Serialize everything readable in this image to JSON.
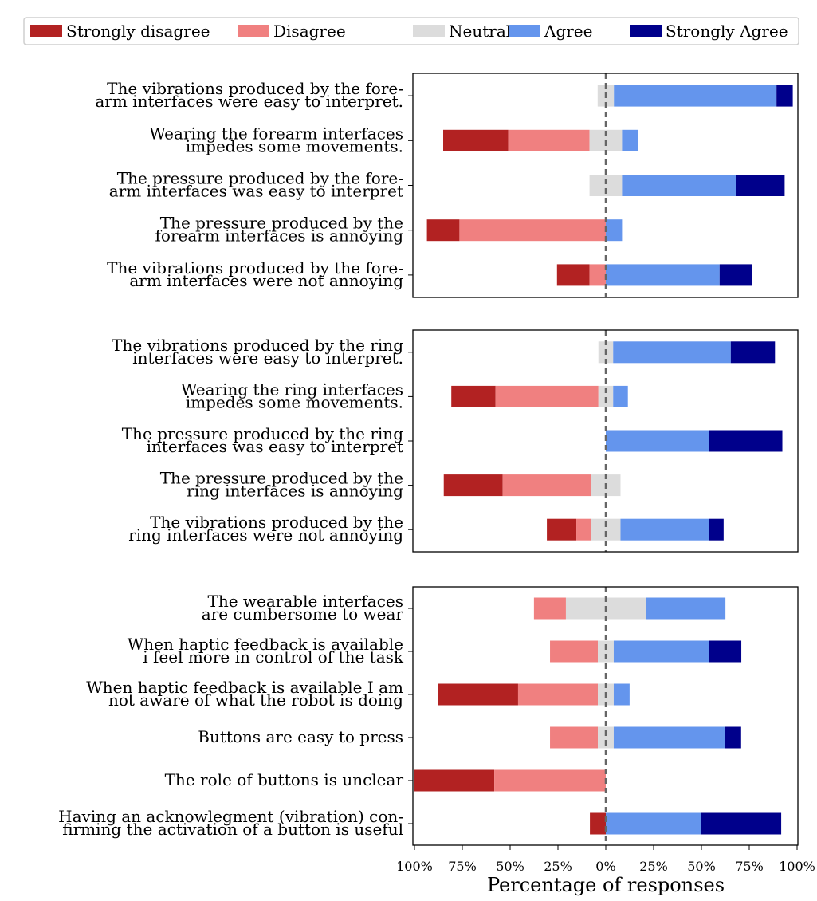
{
  "chart_data": {
    "type": "bar",
    "orientation": "horizontal-diverging",
    "xlabel": "Percentage of responses",
    "xlim": [
      -100,
      100
    ],
    "x_tick_labels": [
      "100%",
      "75%",
      "50%",
      "25%",
      "0%",
      "25%",
      "50%",
      "75%",
      "100%"
    ],
    "legend": {
      "placement": "top",
      "entries": [
        "Strongly disagree",
        "Disagree",
        "Neutral",
        "Agree",
        "Strongly Agree"
      ]
    },
    "colors": {
      "Strongly disagree": "#b22222",
      "Disagree": "#f08080",
      "Neutral": "#dcdcdc",
      "Agree": "#6495ed",
      "Strongly Agree": "#00008b"
    },
    "panels": [
      {
        "questions": [
          {
            "label": [
              "The vibrations produced by the fore-",
              "arm interfaces were easy to interpret."
            ],
            "values": [
              0,
              0,
              8.5,
              85,
              8.5
            ]
          },
          {
            "label": [
              "Wearing the forearm interfaces",
              "impedes some movements."
            ],
            "values": [
              34,
              42.5,
              17,
              8.5,
              0
            ]
          },
          {
            "label": [
              "The pressure produced by the fore-",
              "arm interfaces was easy to interpret"
            ],
            "values": [
              0,
              0,
              17,
              59.5,
              25.5
            ]
          },
          {
            "label": [
              "The pressure produced by the",
              "forearm interfaces is annoying"
            ],
            "values": [
              17,
              76.5,
              0,
              8.5,
              0
            ]
          },
          {
            "label": [
              "The vibrations produced by the fore-",
              "arm interfaces were not annoying"
            ],
            "values": [
              17,
              8.5,
              0,
              59.5,
              17
            ]
          }
        ]
      },
      {
        "questions": [
          {
            "label": [
              "The vibrations produced by the ring",
              "interfaces were easy to interpret."
            ],
            "values": [
              0,
              0,
              7.7,
              61.5,
              23.1
            ]
          },
          {
            "label": [
              "Wearing the ring interfaces",
              "impedes some movements."
            ],
            "values": [
              23.1,
              53.8,
              7.7,
              7.7,
              0
            ]
          },
          {
            "label": [
              "The pressure produced by the ring",
              "interfaces was easy to interpret"
            ],
            "values": [
              0,
              0,
              0,
              53.8,
              38.5
            ]
          },
          {
            "label": [
              "The pressure produced by the",
              "ring interfaces is annoying"
            ],
            "values": [
              30.8,
              46.2,
              15.4,
              0,
              0
            ]
          },
          {
            "label": [
              "The vibrations produced by the",
              "ring interfaces were not annoying"
            ],
            "values": [
              15.4,
              7.7,
              15.4,
              46.2,
              7.7
            ]
          }
        ]
      },
      {
        "questions": [
          {
            "label": [
              "The wearable interfaces",
              "are cumbersome to wear"
            ],
            "values": [
              0,
              16.7,
              41.7,
              41.7,
              0
            ]
          },
          {
            "label": [
              "When haptic feedback is available",
              "i feel more in control of the task"
            ],
            "values": [
              0,
              25,
              8.3,
              50,
              16.7
            ]
          },
          {
            "label": [
              "When haptic feedback is available I am",
              "not aware of what the robot is doing"
            ],
            "values": [
              41.7,
              41.7,
              8.3,
              8.3,
              0
            ]
          },
          {
            "label": [
              "Buttons are easy to press"
            ],
            "values": [
              0,
              25,
              8.3,
              58.3,
              8.3
            ]
          },
          {
            "label": [
              "The role of buttons is unclear"
            ],
            "values": [
              41.7,
              58.3,
              0,
              0,
              0
            ]
          },
          {
            "label": [
              "Having an acknowlegment (vibration) con-",
              "firming the activation of a button is useful"
            ],
            "values": [
              8.3,
              0,
              0,
              50,
              41.7
            ]
          }
        ]
      }
    ]
  }
}
